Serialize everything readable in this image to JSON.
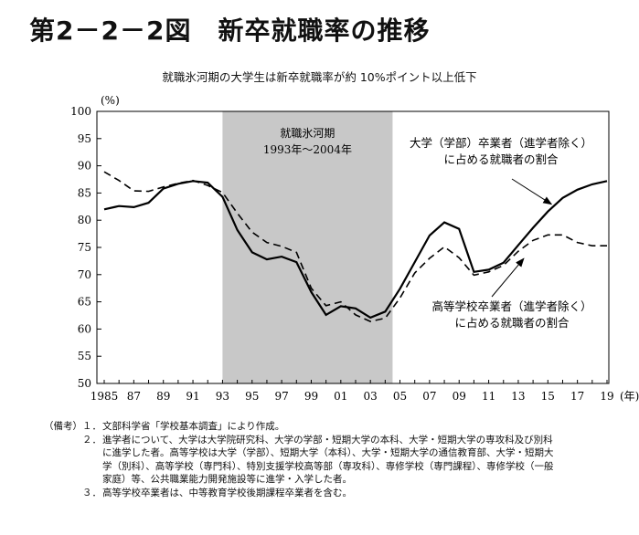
{
  "figure_title": "第2－2－2図　新卒就職率の推移",
  "chart_data": {
    "type": "line",
    "title": "就職氷河期の大学生は新卒就職率が約 10%ポイント以上低下",
    "ylabel": "(%)",
    "xlabel": "(年)",
    "ylim": [
      50,
      100
    ],
    "xlim": [
      1985,
      2019
    ],
    "y_ticks": [
      "50",
      "55",
      "60",
      "65",
      "70",
      "75",
      "80",
      "85",
      "90",
      "95",
      "100"
    ],
    "x_ticks": [
      "1985",
      "87",
      "89",
      "91",
      "93",
      "95",
      "97",
      "99",
      "01",
      "03",
      "05",
      "07",
      "09",
      "11",
      "13",
      "15",
      "17",
      "19"
    ],
    "shaded_period": {
      "from": 1993,
      "to": 2004.5,
      "label_line1": "就職氷河期",
      "label_line2": "1993年～2004年"
    },
    "series": [
      {
        "name": "大学（学部）卒業者（進学者除く）に占める就職者の割合",
        "name_line1": "大学（学部）卒業者（進学者除く）",
        "name_line2": "に占める就職者の割合",
        "style": "solid",
        "color": "#000000",
        "x": [
          1985,
          1986,
          1987,
          1988,
          1989,
          1990,
          1991,
          1992,
          1993,
          1994,
          1995,
          1996,
          1997,
          1998,
          1999,
          2000,
          2001,
          2002,
          2003,
          2004,
          2005,
          2006,
          2007,
          2008,
          2009,
          2010,
          2011,
          2012,
          2013,
          2014,
          2015,
          2016,
          2017,
          2018,
          2019
        ],
        "values": [
          82.0,
          82.6,
          82.4,
          83.2,
          85.8,
          86.7,
          87.2,
          86.9,
          84.3,
          78.2,
          74.1,
          72.8,
          73.3,
          72.3,
          66.8,
          62.6,
          64.2,
          63.8,
          62.1,
          63.2,
          67.4,
          72.3,
          77.2,
          79.6,
          78.4,
          70.5,
          70.9,
          72.2,
          75.4,
          78.6,
          81.6,
          84.1,
          85.6,
          86.6,
          87.2
        ]
      },
      {
        "name": "高等学校卒業者（進学者除く）に占める就職者の割合",
        "name_line1": "高等学校卒業者（進学者除く）",
        "name_line2": "に占める就職者の割合",
        "style": "dashed",
        "color": "#000000",
        "x": [
          1985,
          1986,
          1987,
          1988,
          1989,
          1990,
          1991,
          1992,
          1993,
          1994,
          1995,
          1996,
          1997,
          1998,
          1999,
          2000,
          2001,
          2002,
          2003,
          2004,
          2005,
          2006,
          2007,
          2008,
          2009,
          2010,
          2011,
          2012,
          2013,
          2014,
          2015,
          2016,
          2017,
          2018,
          2019
        ],
        "values": [
          88.9,
          87.3,
          85.4,
          85.3,
          86.1,
          86.8,
          87.3,
          86.4,
          85.1,
          81.3,
          77.8,
          75.9,
          75.2,
          74.1,
          67.5,
          64.3,
          65.0,
          62.6,
          61.4,
          62.0,
          65.7,
          70.3,
          73.0,
          75.1,
          73.1,
          69.9,
          70.5,
          71.7,
          74.3,
          76.3,
          77.3,
          77.3,
          75.9,
          75.3,
          75.3
        ]
      }
    ],
    "grid": false
  },
  "notes": {
    "label": "（備考）",
    "items": [
      {
        "num": "１．",
        "lines": [
          "文部科学省「学校基本調査」により作成。"
        ]
      },
      {
        "num": "２．",
        "lines": [
          "進学者について、大学は大学院研究科、大学の学部・短期大学の本科、大学・短期大学の専攻科及び別科",
          "に進学した者。高等学校は大学（学部）、短期大学（本科）、大学・短期大学の通信教育部、大学・短期大",
          "学（別科）、高等学校（専門科）、特別支援学校高等部（専攻科）、専修学校（専門課程）、専修学校（一般",
          "家庭）等、公共職業能力開発施設等に進学・入学した者。"
        ]
      },
      {
        "num": "３．",
        "lines": [
          "高等学校卒業者は、中等教育学校後期課程卒業者を含む。"
        ]
      }
    ]
  }
}
